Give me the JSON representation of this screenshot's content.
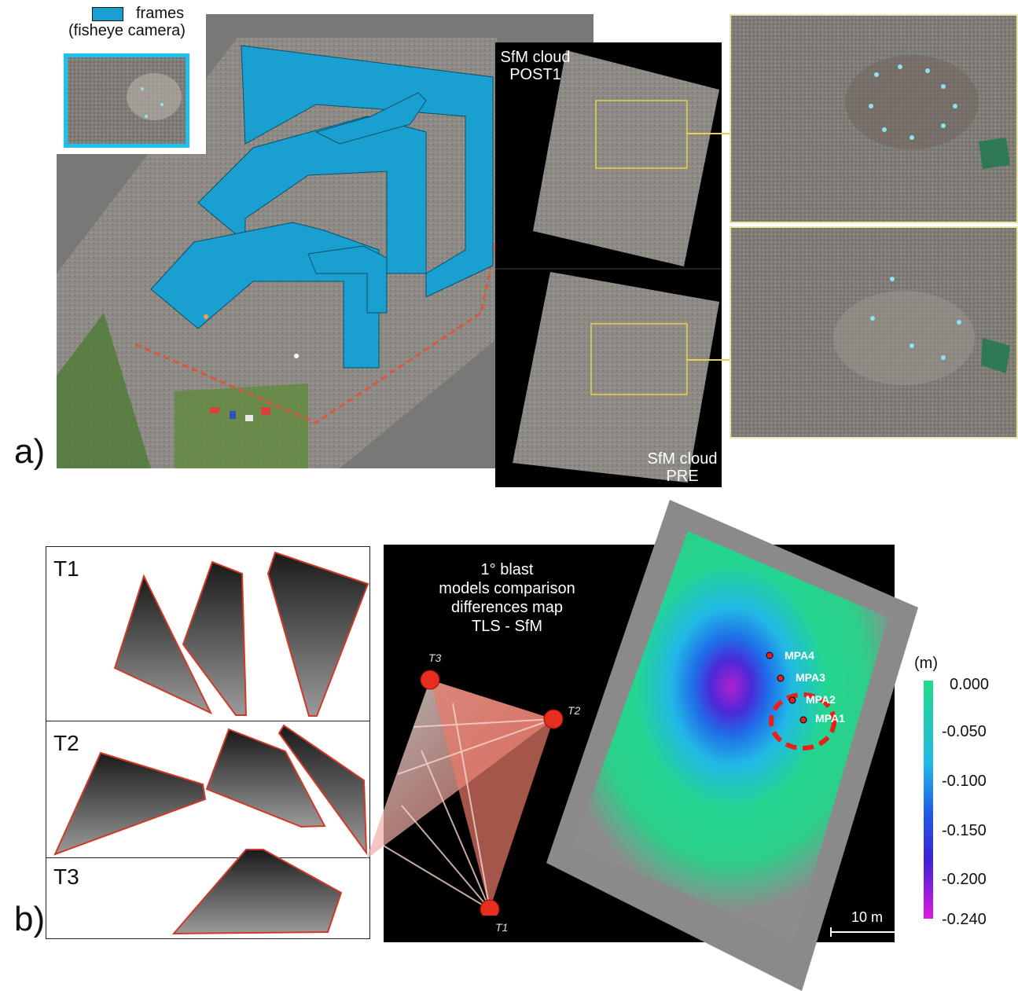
{
  "panel_a": {
    "label": "a)",
    "legend": {
      "label_line1": "frames",
      "label_line2": "(fisheye camera)",
      "swatch_color": "#1aa0d0"
    },
    "clouds": {
      "post_line1": "SfM cloud",
      "post_line2": "POST1",
      "pre_line1": "SfM cloud",
      "pre_line2": "PRE"
    }
  },
  "panel_b": {
    "label": "b)",
    "scans": [
      "T1",
      "T2",
      "T3"
    ],
    "title_lines": [
      "1° blast",
      "models comparison",
      "differences map",
      "TLS - SfM"
    ],
    "stations": [
      "T3",
      "T2",
      "T1"
    ],
    "points": [
      "MPA4",
      "MPA3",
      "MPA2",
      "MPA1"
    ],
    "colorbar": {
      "unit": "(m)",
      "ticks": [
        "0.000",
        "-0.050",
        "-0.100",
        "-0.150",
        "-0.200",
        "-0.240"
      ]
    },
    "scale_bar": "10 m"
  }
}
